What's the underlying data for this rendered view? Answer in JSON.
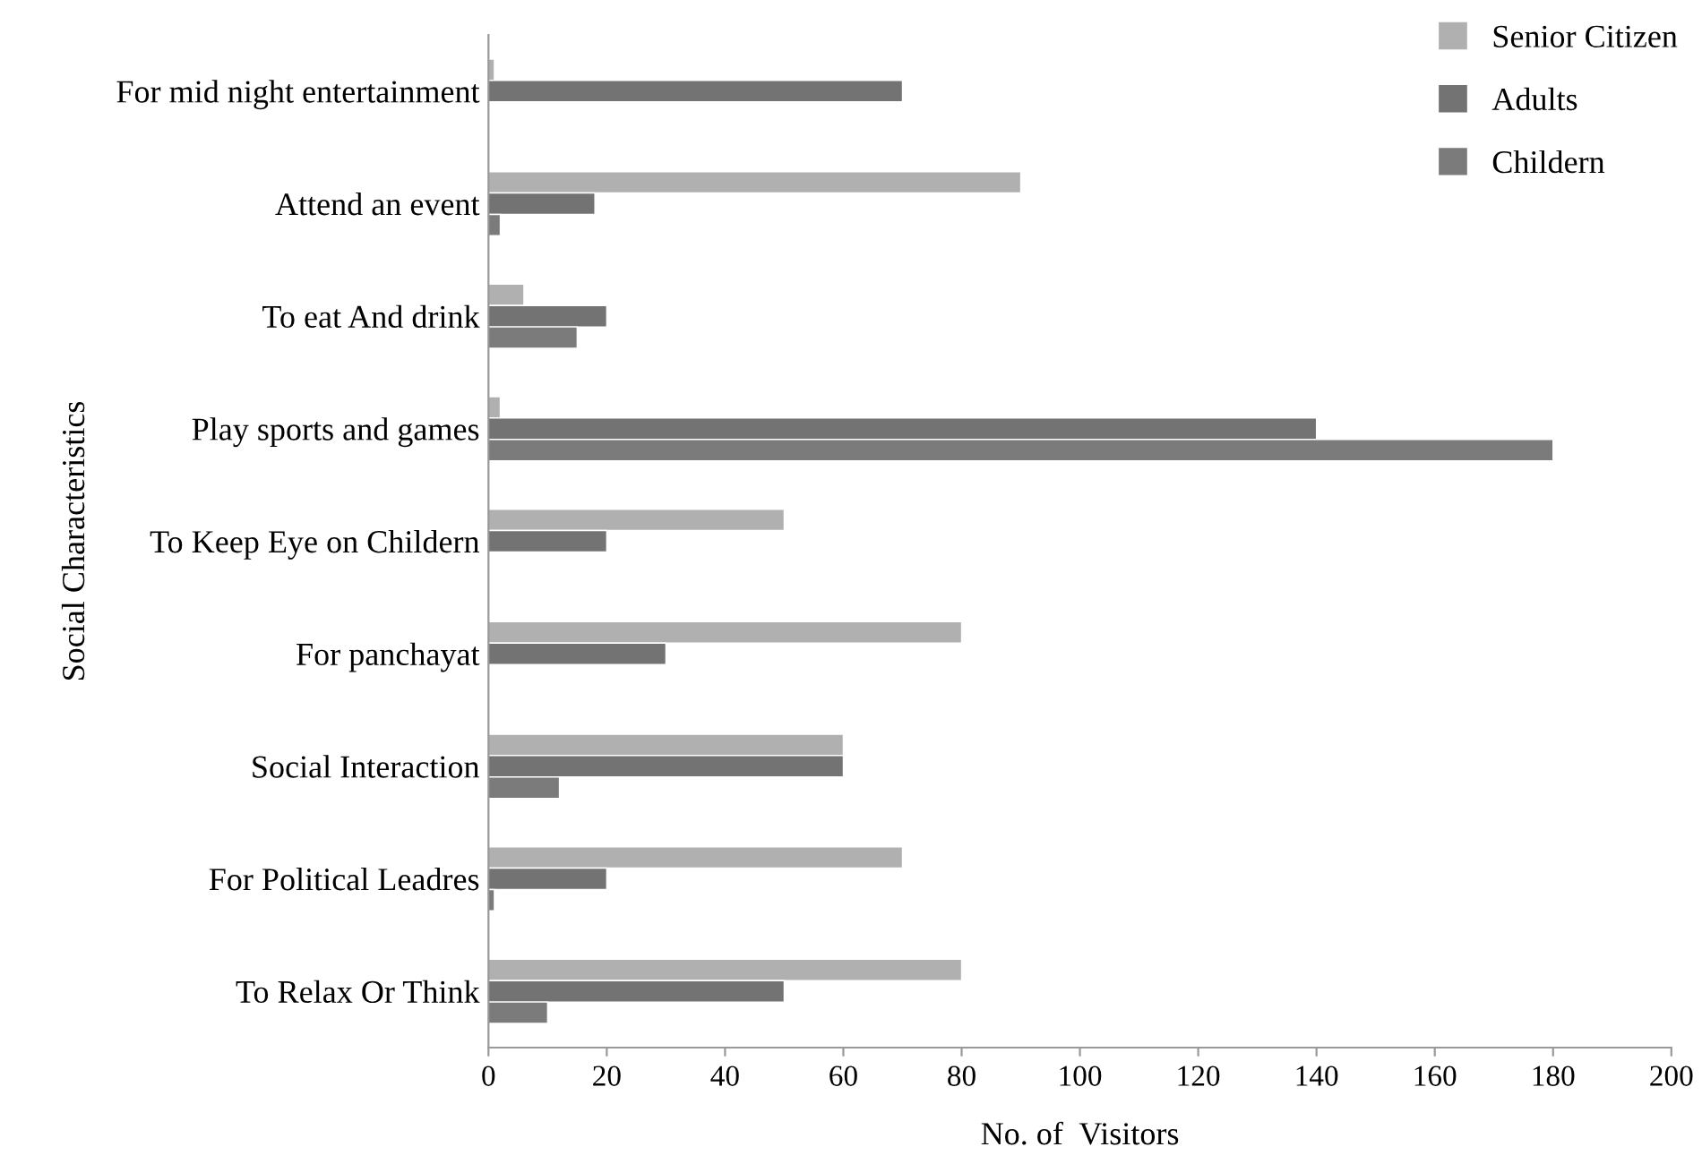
{
  "chart_data": {
    "type": "bar",
    "orientation": "horizontal",
    "xlabel": "No. of  Visitors",
    "ylabel": "Social Characteristics",
    "categories": [
      "For mid night entertainment",
      "Attend an event",
      "To eat And drink",
      "Play sports and games",
      "To Keep Eye on Childern",
      "For panchayat",
      "Social Interaction",
      "For Political Leadres",
      "To Relax Or Think"
    ],
    "series": [
      {
        "name": "Senior Citizen",
        "color": "#b0b0b0",
        "values": [
          1,
          90,
          6,
          2,
          50,
          80,
          60,
          70,
          80
        ]
      },
      {
        "name": "Adults",
        "color": "#737373",
        "values": [
          70,
          18,
          20,
          140,
          20,
          30,
          60,
          20,
          50
        ]
      },
      {
        "name": "Childern",
        "color": "#7b7b7b",
        "values": [
          null,
          2,
          15,
          180,
          null,
          null,
          12,
          1,
          10
        ]
      }
    ],
    "xlim": [
      0,
      200
    ],
    "xticks": [
      0,
      20,
      40,
      60,
      80,
      100,
      120,
      140,
      160,
      180,
      200
    ],
    "grid": false,
    "legend": "top right"
  }
}
